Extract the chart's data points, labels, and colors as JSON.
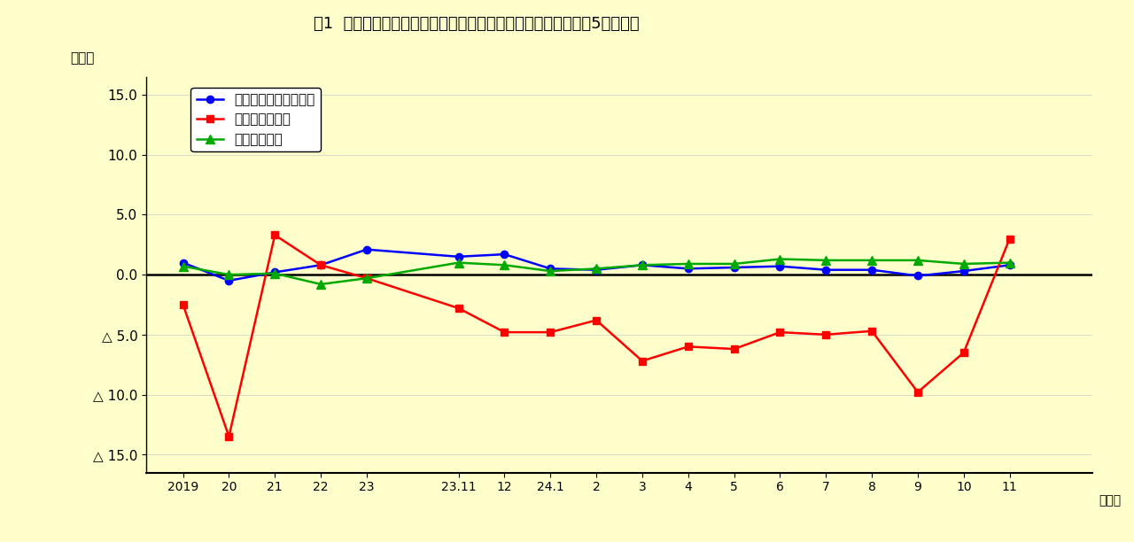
{
  "title": "図1  対前年比、対前年同月比の推移（調査産業計、事業所規模5人以上）",
  "ylabel": "（％）",
  "xlabel_suffix": "（月）",
  "background_color": "#FFFFCC",
  "ylim": [
    -16.5,
    16.5
  ],
  "ytick_vals": [
    15.0,
    10.0,
    5.0,
    0.0,
    -5.0,
    -10.0,
    -15.0
  ],
  "ytick_labels": [
    "15.0",
    "10.0",
    "5.0",
    "0.0",
    "△ 5.0",
    "△ 10.0",
    "△ 15.0"
  ],
  "x_positions": [
    0,
    1,
    2,
    3,
    4,
    6,
    7,
    8,
    9,
    10,
    11,
    12,
    13,
    14,
    15,
    16,
    17,
    18,
    19
  ],
  "xtick_labels": [
    "2019",
    "20",
    "21",
    "22",
    "23",
    "23.11",
    "12",
    "24.1",
    "2",
    "3",
    "4",
    "5",
    "6",
    "7",
    "8",
    "9",
    "10",
    "11",
    ""
  ],
  "xtick_positions_display": [
    0,
    1,
    2,
    3,
    4,
    6,
    7,
    8,
    9,
    10,
    11,
    12,
    13,
    14,
    15,
    16,
    17,
    18
  ],
  "xtick_labels_display": [
    "2019",
    "20",
    "21",
    "22",
    "23",
    "23.11",
    "12",
    "24.1",
    "2",
    "3",
    "4",
    "5",
    "6",
    "7",
    "8",
    "9",
    "10",
    "11"
  ],
  "xlim": [
    -0.8,
    19.8
  ],
  "series": [
    {
      "name": "きまって支給する給与",
      "color": "#0000FF",
      "marker": "o",
      "markersize": 6,
      "linewidth": 1.8,
      "x_idx": [
        0,
        1,
        2,
        3,
        4,
        6,
        7,
        8,
        9,
        10,
        11,
        12,
        13,
        14,
        15,
        16,
        17,
        18
      ],
      "values": [
        1.0,
        -0.5,
        0.2,
        0.8,
        2.1,
        1.5,
        1.7,
        0.5,
        0.4,
        0.8,
        0.5,
        0.6,
        0.7,
        0.4,
        0.4,
        -0.1,
        0.3,
        0.8
      ]
    },
    {
      "name": "所定外労働時間",
      "color": "#FF0000",
      "marker": "s",
      "markersize": 6,
      "linewidth": 1.8,
      "x_idx": [
        0,
        1,
        2,
        3,
        4,
        6,
        7,
        8,
        9,
        10,
        11,
        12,
        13,
        14,
        15,
        16,
        17,
        18
      ],
      "values": [
        -2.5,
        -13.5,
        3.3,
        0.8,
        -0.3,
        -2.8,
        -4.8,
        -4.8,
        -3.8,
        -7.2,
        -6.0,
        -6.2,
        -4.8,
        -5.0,
        -4.7,
        -9.8,
        -6.5,
        3.0
      ]
    },
    {
      "name": "常用雇用指数",
      "color": "#00AA00",
      "marker": "^",
      "markersize": 7,
      "linewidth": 1.8,
      "x_idx": [
        0,
        1,
        2,
        3,
        4,
        6,
        7,
        8,
        9,
        10,
        11,
        12,
        13,
        14,
        15,
        16,
        17,
        18
      ],
      "values": [
        0.7,
        0.0,
        0.1,
        -0.8,
        -0.3,
        1.0,
        0.8,
        0.3,
        0.5,
        0.8,
        0.9,
        0.9,
        1.3,
        1.2,
        1.2,
        1.2,
        0.9,
        1.0
      ]
    }
  ]
}
